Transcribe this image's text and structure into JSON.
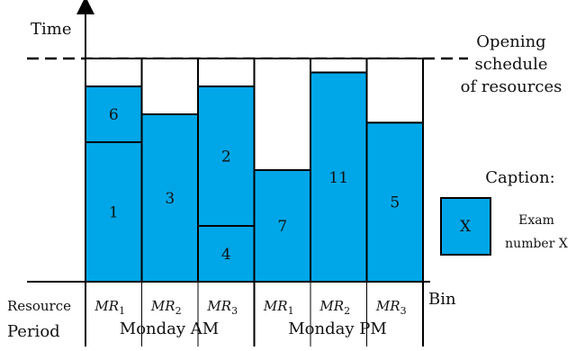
{
  "axis": {
    "y_label": "Time",
    "x_label": "Bin"
  },
  "schedule_label": [
    "Opening",
    "schedule",
    "of resources"
  ],
  "caption": {
    "title": "Caption:",
    "sample": "X",
    "text": [
      "Exam",
      "number X"
    ]
  },
  "row_labels": {
    "resource": "Resource",
    "period": "Period"
  },
  "colors": {
    "block_fill": "#00a7e8",
    "stroke": "#000000",
    "empty": "#ffffff"
  },
  "bins": [
    {
      "resource": "MR",
      "sub": "1",
      "period": "Monday AM",
      "exams": [
        {
          "id": "1",
          "size": 5
        },
        {
          "id": "6",
          "size": 2
        }
      ]
    },
    {
      "resource": "MR",
      "sub": "2",
      "period": "Monday AM",
      "exams": [
        {
          "id": "3",
          "size": 6
        }
      ]
    },
    {
      "resource": "MR",
      "sub": "3",
      "period": "Monday AM",
      "exams": [
        {
          "id": "4",
          "size": 2
        },
        {
          "id": "2",
          "size": 5
        }
      ]
    },
    {
      "resource": "MR",
      "sub": "1",
      "period": "Monday PM",
      "exams": [
        {
          "id": "7",
          "size": 4
        }
      ]
    },
    {
      "resource": "MR",
      "sub": "2",
      "period": "Monday PM",
      "exams": [
        {
          "id": "11",
          "size": 7.5
        }
      ]
    },
    {
      "resource": "MR",
      "sub": "3",
      "period": "Monday PM",
      "exams": [
        {
          "id": "5",
          "size": 5.7
        }
      ]
    }
  ],
  "periods": [
    "Monday AM",
    "Monday PM"
  ]
}
